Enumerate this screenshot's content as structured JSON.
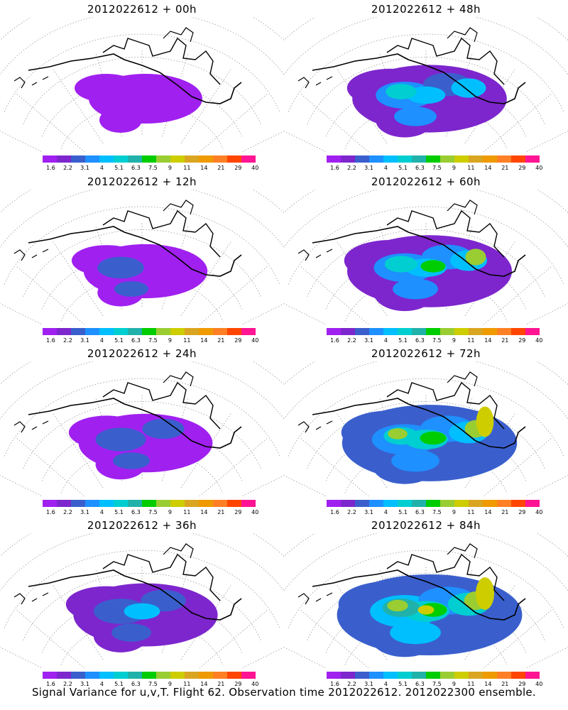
{
  "caption": "Signal Variance for u,v,T. Flight 62. Observation time 2012022612. 2012022300 ensemble.",
  "colorbar": {
    "tick_labels": [
      "1.6",
      "2.2",
      "3.1",
      "4",
      "5.1",
      "6.3",
      "7.5",
      "9",
      "11",
      "14",
      "21",
      "29",
      "40"
    ],
    "colors": [
      "#a020f0",
      "#7d26cd",
      "#3a5fcd",
      "#1e90ff",
      "#00bfff",
      "#00ced1",
      "#20b2aa",
      "#00cd00",
      "#9acd32",
      "#cdcd00",
      "#daa520",
      "#ee9a00",
      "#ff7f24",
      "#ff4500",
      "#ff1493"
    ]
  },
  "chart_data": [
    {
      "type": "heatmap",
      "title": "2012022612 + 00h",
      "level": 0
    },
    {
      "type": "heatmap",
      "title": "2012022612 + 48h",
      "level": 4
    },
    {
      "type": "heatmap",
      "title": "2012022612 + 12h",
      "level": 1
    },
    {
      "type": "heatmap",
      "title": "2012022612 + 60h",
      "level": 5
    },
    {
      "type": "heatmap",
      "title": "2012022612 + 24h",
      "level": 2
    },
    {
      "type": "heatmap",
      "title": "2012022612 + 72h",
      "level": 6
    },
    {
      "type": "heatmap",
      "title": "2012022612 + 36h",
      "level": 3
    },
    {
      "type": "heatmap",
      "title": "2012022612 + 84h",
      "level": 7
    }
  ]
}
